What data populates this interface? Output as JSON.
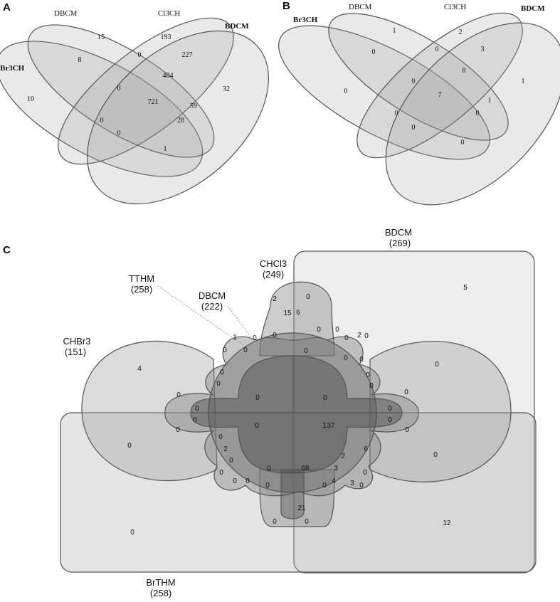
{
  "panel_a": {
    "letter": "A",
    "sets": [
      "Br3CH",
      "DBCM",
      "Cl3CH",
      "BDCM"
    ],
    "regions": [
      "15",
      "193",
      "8",
      "0",
      "227",
      "484",
      "32",
      "10",
      "0",
      "721",
      "59",
      "0",
      "28",
      "0",
      "1"
    ]
  },
  "panel_b": {
    "letter": "B",
    "sets": [
      "Br3CH",
      "DBCM",
      "Cl3CH",
      "BDCM"
    ],
    "regions": [
      "1",
      "2",
      "0",
      "0",
      "3",
      "8",
      "1",
      "0",
      "0",
      "7",
      "1",
      "0",
      "0",
      "0",
      "0"
    ]
  },
  "panel_c": {
    "letter": "C",
    "sets": [
      {
        "name": "BDCM",
        "count": "(269)"
      },
      {
        "name": "CHCl3",
        "count": "(249)"
      },
      {
        "name": "TTHM",
        "count": "(258)"
      },
      {
        "name": "DBCM",
        "count": "(222)"
      },
      {
        "name": "CHBr3",
        "count": "(151)"
      },
      {
        "name": "BrTHM",
        "count": "(258)"
      }
    ],
    "regions": [
      "5",
      "2",
      "0",
      "15",
      "6",
      "1",
      "0",
      "0",
      "0",
      "0",
      "0",
      "2",
      "0",
      "0",
      "0",
      "4",
      "0",
      "0",
      "0",
      "0",
      "0",
      "0",
      "0",
      "0",
      "0",
      "0",
      "0",
      "0",
      "0",
      "0",
      "0",
      "0",
      "0",
      "0",
      "0",
      "0",
      "137",
      "0",
      "2",
      "6",
      "2",
      "0",
      "0",
      "0",
      "68",
      "3",
      "0",
      "4",
      "3",
      "0",
      "0",
      "0",
      "0",
      "21",
      "0",
      "0",
      "0",
      "0",
      "12",
      "0"
    ]
  },
  "colors": {
    "region_fill": "#9a9a9a",
    "outline": "#555555",
    "text": "#111111",
    "connector": "#9a9a9a"
  }
}
